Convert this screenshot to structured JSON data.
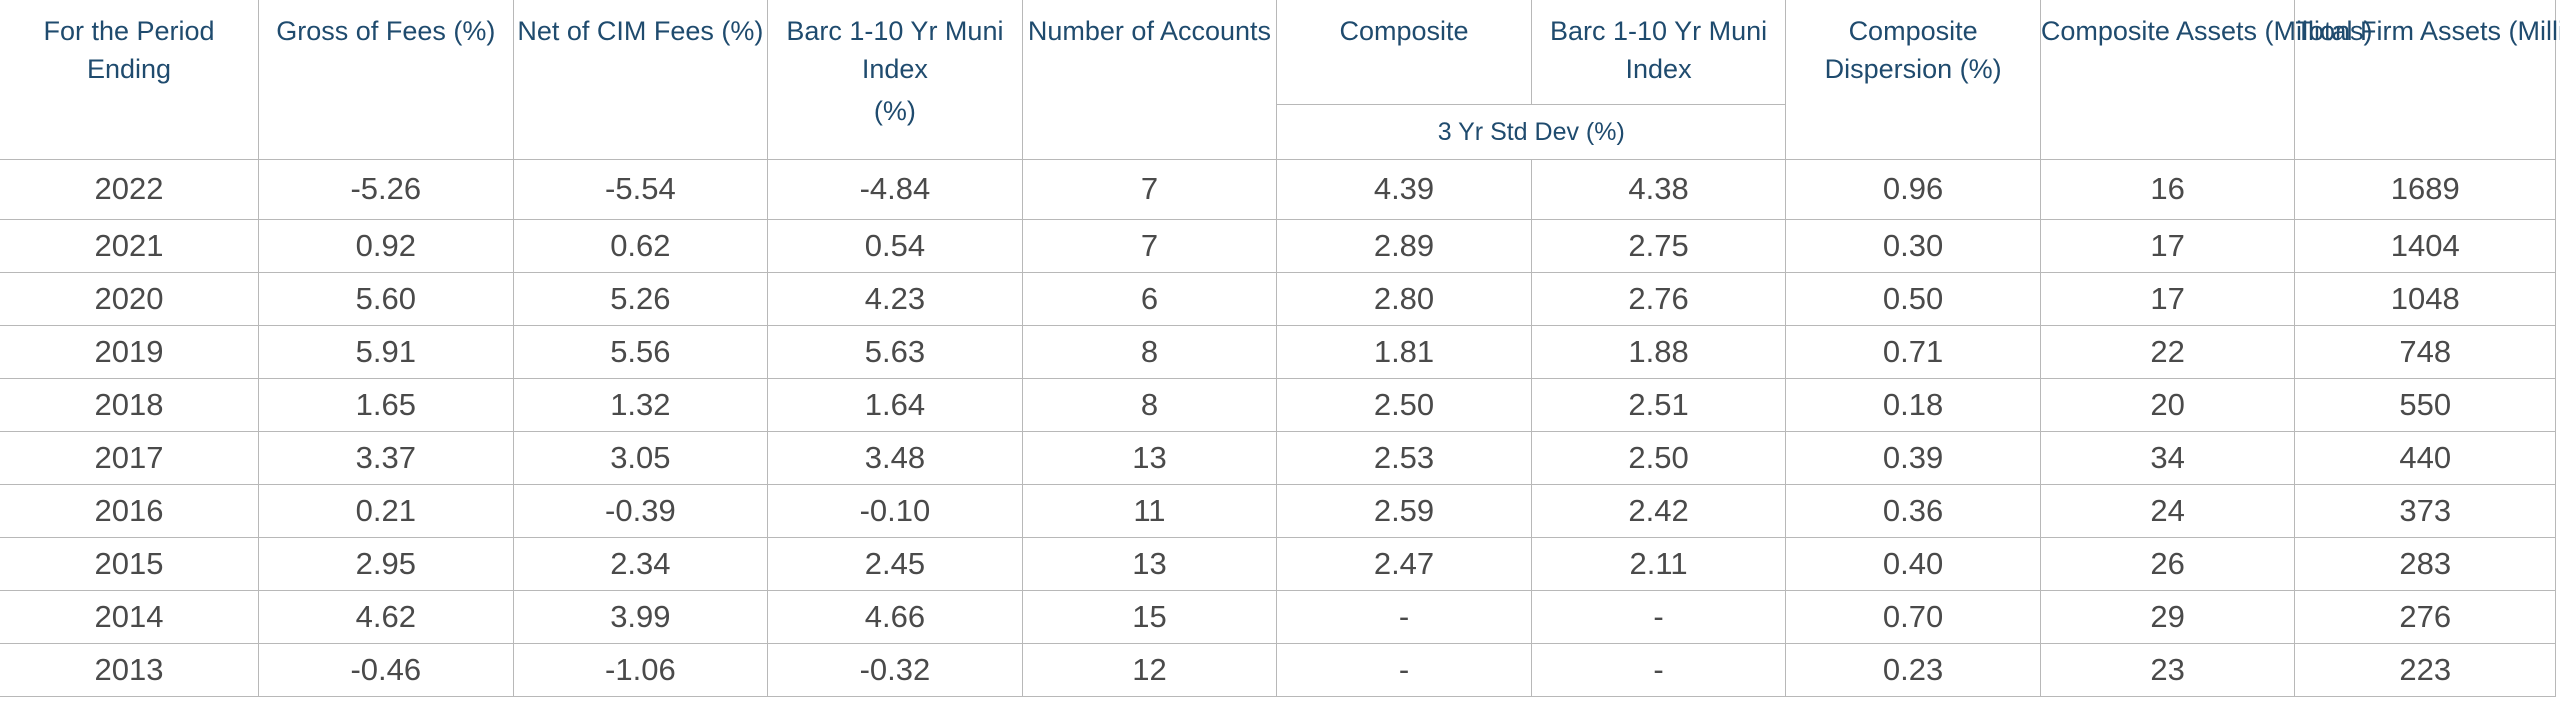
{
  "columns": {
    "period": "For the Period Ending",
    "gross": "Gross of Fees (%)",
    "net": "Net of CIM Fees (%)",
    "index_line1": "Barc 1-10 Yr Muni Index",
    "index_line2": "(%)",
    "accounts": "Number of Accounts",
    "composite": "Composite",
    "muni_index": "Barc 1-10 Yr Muni Index",
    "std_dev_group": "3 Yr Std Dev (%)",
    "dispersion": "Composite Dispersion (%)",
    "composite_assets": "Composite Assets (Millions)",
    "firm_assets": "Total Firm Assets (Millions)"
  },
  "rows": [
    {
      "year": "2022",
      "gross": "-5.26",
      "net": "-5.54",
      "index": "-4.84",
      "accounts": "7",
      "comp_sd": "4.39",
      "index_sd": "4.38",
      "dispersion": "0.96",
      "comp_assets": "16",
      "firm_assets": "1689"
    },
    {
      "year": "2021",
      "gross": "0.92",
      "net": "0.62",
      "index": "0.54",
      "accounts": "7",
      "comp_sd": "2.89",
      "index_sd": "2.75",
      "dispersion": "0.30",
      "comp_assets": "17",
      "firm_assets": "1404"
    },
    {
      "year": "2020",
      "gross": "5.60",
      "net": "5.26",
      "index": "4.23",
      "accounts": "6",
      "comp_sd": "2.80",
      "index_sd": "2.76",
      "dispersion": "0.50",
      "comp_assets": "17",
      "firm_assets": "1048"
    },
    {
      "year": "2019",
      "gross": "5.91",
      "net": "5.56",
      "index": "5.63",
      "accounts": "8",
      "comp_sd": "1.81",
      "index_sd": "1.88",
      "dispersion": "0.71",
      "comp_assets": "22",
      "firm_assets": "748"
    },
    {
      "year": "2018",
      "gross": "1.65",
      "net": "1.32",
      "index": "1.64",
      "accounts": "8",
      "comp_sd": "2.50",
      "index_sd": "2.51",
      "dispersion": "0.18",
      "comp_assets": "20",
      "firm_assets": "550"
    },
    {
      "year": "2017",
      "gross": "3.37",
      "net": "3.05",
      "index": "3.48",
      "accounts": "13",
      "comp_sd": "2.53",
      "index_sd": "2.50",
      "dispersion": "0.39",
      "comp_assets": "34",
      "firm_assets": "440"
    },
    {
      "year": "2016",
      "gross": "0.21",
      "net": "-0.39",
      "index": "-0.10",
      "accounts": "11",
      "comp_sd": "2.59",
      "index_sd": "2.42",
      "dispersion": "0.36",
      "comp_assets": "24",
      "firm_assets": "373"
    },
    {
      "year": "2015",
      "gross": "2.95",
      "net": "2.34",
      "index": "2.45",
      "accounts": "13",
      "comp_sd": "2.47",
      "index_sd": "2.11",
      "dispersion": "0.40",
      "comp_assets": "26",
      "firm_assets": "283"
    },
    {
      "year": "2014",
      "gross": "4.62",
      "net": "3.99",
      "index": "4.66",
      "accounts": "15",
      "comp_sd": "-",
      "index_sd": "-",
      "dispersion": "0.70",
      "comp_assets": "29",
      "firm_assets": "276"
    },
    {
      "year": "2013",
      "gross": "-0.46",
      "net": "-1.06",
      "index": "-0.32",
      "accounts": "12",
      "comp_sd": "-",
      "index_sd": "-",
      "dispersion": "0.23",
      "comp_assets": "23",
      "firm_assets": "223"
    }
  ]
}
